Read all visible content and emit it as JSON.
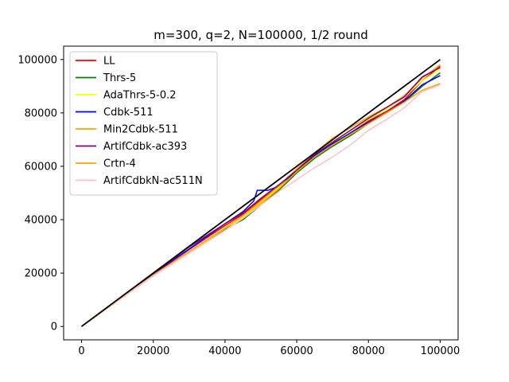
{
  "chart_data": {
    "type": "line",
    "title": "m=300, q=2, N=100000, 1/2 round",
    "xlabel": "",
    "ylabel": "",
    "xlim": [
      -5000,
      105000
    ],
    "ylim": [
      -5000,
      105000
    ],
    "xticks": [
      0,
      20000,
      40000,
      60000,
      80000,
      100000
    ],
    "yticks": [
      0,
      20000,
      40000,
      60000,
      80000,
      100000
    ],
    "grid": false,
    "legend_position": "top-left",
    "reference_line": {
      "color": "#000000",
      "points": [
        [
          0,
          0
        ],
        [
          100000,
          100000
        ]
      ]
    },
    "series": [
      {
        "name": "LL",
        "color": "#ff0000",
        "points": [
          [
            0,
            0
          ],
          [
            10000,
            10000
          ],
          [
            20000,
            19600
          ],
          [
            30000,
            28800
          ],
          [
            40000,
            37800
          ],
          [
            45000,
            42000
          ],
          [
            50000,
            47500
          ],
          [
            55000,
            52500
          ],
          [
            60000,
            58000
          ],
          [
            65000,
            63500
          ],
          [
            70000,
            68000
          ],
          [
            75000,
            72500
          ],
          [
            80000,
            77000
          ],
          [
            85000,
            80500
          ],
          [
            90000,
            85000
          ],
          [
            95000,
            92000
          ],
          [
            100000,
            97500
          ]
        ]
      },
      {
        "name": "Thrs-5",
        "color": "#008000",
        "points": [
          [
            0,
            0
          ],
          [
            10000,
            9800
          ],
          [
            20000,
            19300
          ],
          [
            30000,
            28000
          ],
          [
            40000,
            36500
          ],
          [
            45000,
            40000
          ],
          [
            50000,
            45500
          ],
          [
            55000,
            51000
          ],
          [
            60000,
            57500
          ],
          [
            65000,
            63000
          ],
          [
            70000,
            67500
          ],
          [
            75000,
            71500
          ],
          [
            80000,
            76000
          ],
          [
            85000,
            80000
          ],
          [
            90000,
            84000
          ],
          [
            95000,
            90000
          ],
          [
            100000,
            95000
          ]
        ]
      },
      {
        "name": "AdaThrs-5-0.2",
        "color": "#ffff00",
        "points": [
          [
            0,
            0
          ],
          [
            10000,
            9700
          ],
          [
            20000,
            19000
          ],
          [
            30000,
            27800
          ],
          [
            40000,
            36800
          ],
          [
            45000,
            41000
          ],
          [
            50000,
            46500
          ],
          [
            55000,
            52000
          ],
          [
            60000,
            59000
          ],
          [
            65000,
            64500
          ],
          [
            70000,
            69500
          ],
          [
            75000,
            73500
          ],
          [
            80000,
            77500
          ],
          [
            85000,
            81500
          ],
          [
            90000,
            86000
          ],
          [
            95000,
            92000
          ],
          [
            100000,
            96500
          ]
        ]
      },
      {
        "name": "Cdbk-511",
        "color": "#0000ff",
        "points": [
          [
            0,
            0
          ],
          [
            10000,
            10000
          ],
          [
            20000,
            19800
          ],
          [
            30000,
            29000
          ],
          [
            40000,
            38500
          ],
          [
            45000,
            43000
          ],
          [
            48000,
            47000
          ],
          [
            49000,
            51000
          ],
          [
            52000,
            51000
          ],
          [
            55000,
            52500
          ],
          [
            60000,
            58500
          ],
          [
            65000,
            64000
          ],
          [
            70000,
            68500
          ],
          [
            75000,
            72500
          ],
          [
            80000,
            76500
          ],
          [
            85000,
            80000
          ],
          [
            90000,
            84500
          ],
          [
            95000,
            90500
          ],
          [
            100000,
            94000
          ]
        ]
      },
      {
        "name": "Min2Cdbk-511",
        "color": "#ffa500",
        "points": [
          [
            0,
            0
          ],
          [
            10000,
            9600
          ],
          [
            20000,
            19200
          ],
          [
            30000,
            28000
          ],
          [
            40000,
            37000
          ],
          [
            45000,
            41500
          ],
          [
            50000,
            47000
          ],
          [
            55000,
            52500
          ],
          [
            60000,
            59000
          ],
          [
            65000,
            65000
          ],
          [
            70000,
            70500
          ],
          [
            75000,
            74500
          ],
          [
            80000,
            78500
          ],
          [
            85000,
            82000
          ],
          [
            90000,
            86500
          ],
          [
            95000,
            93000
          ],
          [
            100000,
            98000
          ]
        ]
      },
      {
        "name": "ArtifCdbk-ac393",
        "color": "#800080",
        "points": [
          [
            0,
            0
          ],
          [
            10000,
            10000
          ],
          [
            20000,
            19800
          ],
          [
            30000,
            29800
          ],
          [
            40000,
            38500
          ],
          [
            45000,
            42500
          ],
          [
            50000,
            48000
          ],
          [
            55000,
            53000
          ],
          [
            60000,
            58500
          ],
          [
            65000,
            64500
          ],
          [
            70000,
            69000
          ],
          [
            75000,
            73500
          ],
          [
            80000,
            78000
          ],
          [
            85000,
            82000
          ],
          [
            90000,
            86000
          ],
          [
            95000,
            93500
          ],
          [
            100000,
            97000
          ]
        ]
      },
      {
        "name": "Crtn-4",
        "color": "#ffa500",
        "points": [
          [
            0,
            0
          ],
          [
            10000,
            9500
          ],
          [
            20000,
            19000
          ],
          [
            30000,
            27500
          ],
          [
            40000,
            36000
          ],
          [
            45000,
            40500
          ],
          [
            50000,
            46000
          ],
          [
            55000,
            51500
          ],
          [
            60000,
            58000
          ],
          [
            65000,
            63500
          ],
          [
            70000,
            68000
          ],
          [
            75000,
            72000
          ],
          [
            80000,
            76000
          ],
          [
            85000,
            80000
          ],
          [
            90000,
            84000
          ],
          [
            95000,
            88500
          ],
          [
            100000,
            91000
          ]
        ]
      },
      {
        "name": "ArtifCdbkN-ac511N",
        "color": "#ffc0cb",
        "points": [
          [
            0,
            0
          ],
          [
            10000,
            9600
          ],
          [
            20000,
            19000
          ],
          [
            30000,
            27500
          ],
          [
            40000,
            36000
          ],
          [
            45000,
            40500
          ],
          [
            50000,
            45500
          ],
          [
            55000,
            50500
          ],
          [
            60000,
            55000
          ],
          [
            65000,
            59500
          ],
          [
            70000,
            63500
          ],
          [
            75000,
            68000
          ],
          [
            80000,
            73500
          ],
          [
            85000,
            77500
          ],
          [
            90000,
            82000
          ],
          [
            95000,
            88000
          ],
          [
            100000,
            90500
          ]
        ]
      }
    ]
  }
}
